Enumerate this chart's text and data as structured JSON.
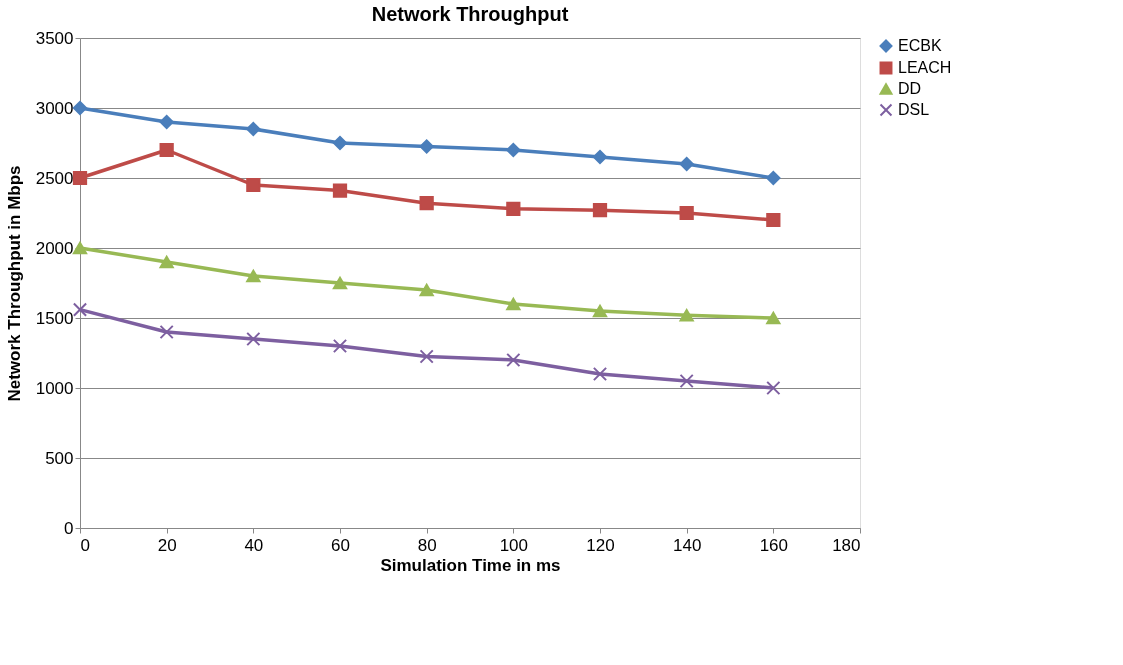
{
  "chart_data": {
    "type": "line",
    "title": "Network Throughput",
    "xlabel": "Simulation Time in ms",
    "ylabel": "Network Throughput in Mbps",
    "x": [
      0,
      20,
      40,
      60,
      80,
      100,
      120,
      140,
      160
    ],
    "series": [
      {
        "name": "ECBK",
        "color": "#4a7ebb",
        "marker": "diamond",
        "values": [
          3000,
          2900,
          2850,
          2750,
          2725,
          2700,
          2650,
          2600,
          2500
        ]
      },
      {
        "name": "LEACH",
        "color": "#be4b48",
        "marker": "square",
        "values": [
          2500,
          2700,
          2450,
          2410,
          2320,
          2280,
          2270,
          2250,
          2200
        ]
      },
      {
        "name": "DD",
        "color": "#98b954",
        "marker": "triangle",
        "values": [
          2000,
          1900,
          1800,
          1750,
          1700,
          1600,
          1550,
          1520,
          1500
        ]
      },
      {
        "name": "DSL",
        "color": "#7d5fa0",
        "marker": "cross",
        "values": [
          1560,
          1400,
          1350,
          1300,
          1225,
          1200,
          1100,
          1050,
          1000
        ]
      }
    ],
    "xlim": [
      0,
      180
    ],
    "xticks": [
      0,
      20,
      40,
      60,
      80,
      100,
      120,
      140,
      160,
      180
    ],
    "ylim": [
      0,
      3500
    ],
    "yticks": [
      0,
      500,
      1000,
      1500,
      2000,
      2500,
      3000,
      3500
    ],
    "grid": "y",
    "legend": "right",
    "line_style": "solid"
  }
}
